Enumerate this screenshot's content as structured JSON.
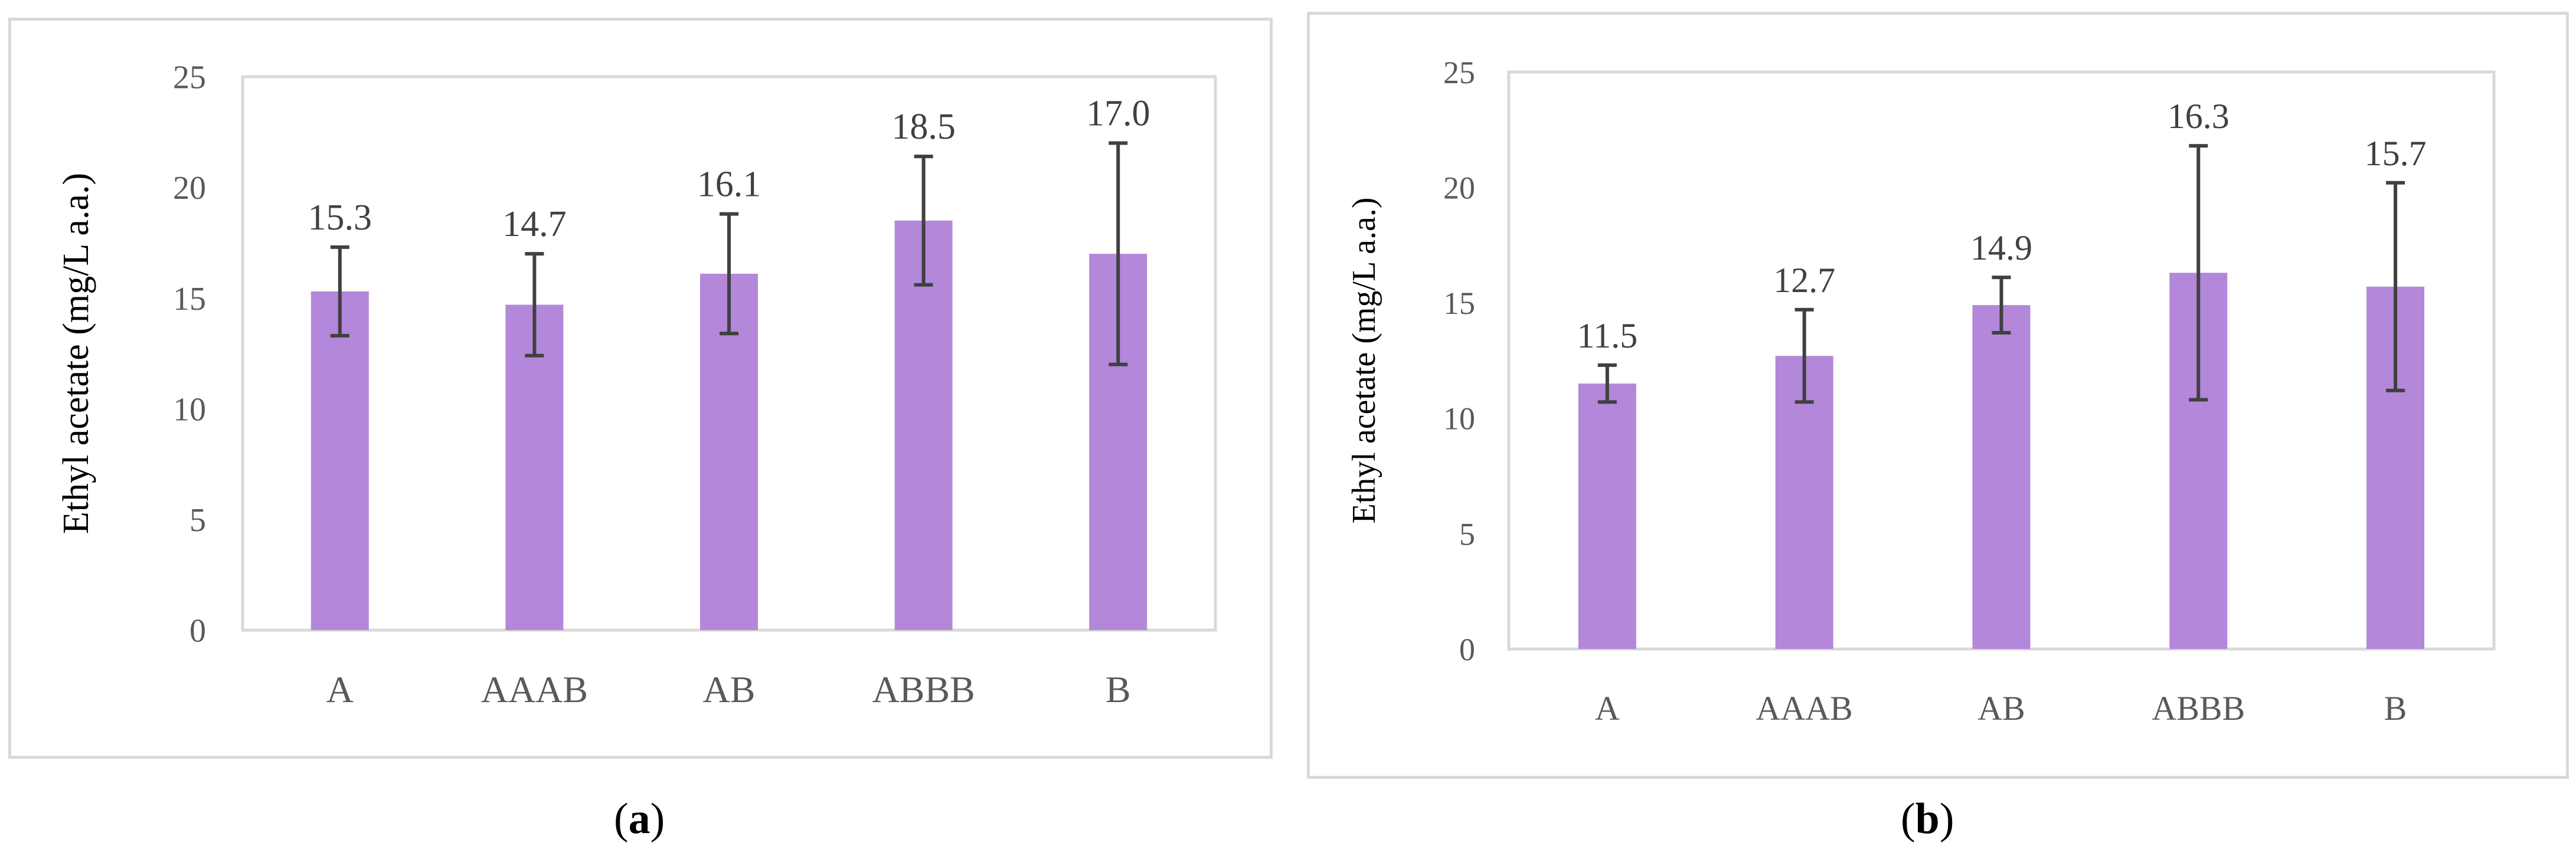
{
  "chart_data": [
    {
      "type": "bar",
      "panel": "a",
      "categories": [
        "A",
        "AAAB",
        "AB",
        "ABBB",
        "B"
      ],
      "values": [
        15.3,
        14.7,
        16.1,
        18.5,
        17.0
      ],
      "value_labels": [
        "15.3",
        "14.7",
        "16.1",
        "18.5",
        "17.0"
      ],
      "error_bars": [
        2.0,
        2.3,
        2.7,
        2.9,
        5.0
      ],
      "ylabel": "Ethyl acetate (mg/L a.a.)",
      "xlabel": "",
      "ylim": [
        0,
        25
      ],
      "yticks": [
        0,
        5,
        10,
        15,
        20,
        25
      ],
      "grid": false,
      "bar_color": "#b387d9"
    },
    {
      "type": "bar",
      "panel": "b",
      "categories": [
        "A",
        "AAAB",
        "AB",
        "ABBB",
        "B"
      ],
      "values": [
        11.5,
        12.7,
        14.9,
        16.3,
        15.7
      ],
      "value_labels": [
        "11.5",
        "12.7",
        "14.9",
        "16.3",
        "15.7"
      ],
      "error_bars": [
        0.8,
        2.0,
        1.2,
        5.5,
        4.5
      ],
      "ylabel": "Ethyl acetate (mg/L a.a.)",
      "xlabel": "",
      "ylim": [
        0,
        25
      ],
      "yticks": [
        0,
        5,
        10,
        15,
        20,
        25
      ],
      "grid": false,
      "bar_color": "#b387d9"
    }
  ],
  "captions": {
    "a": {
      "open": "(",
      "letter": "a",
      "close": ")"
    },
    "b": {
      "open": "(",
      "letter": "b",
      "close": ")"
    }
  }
}
